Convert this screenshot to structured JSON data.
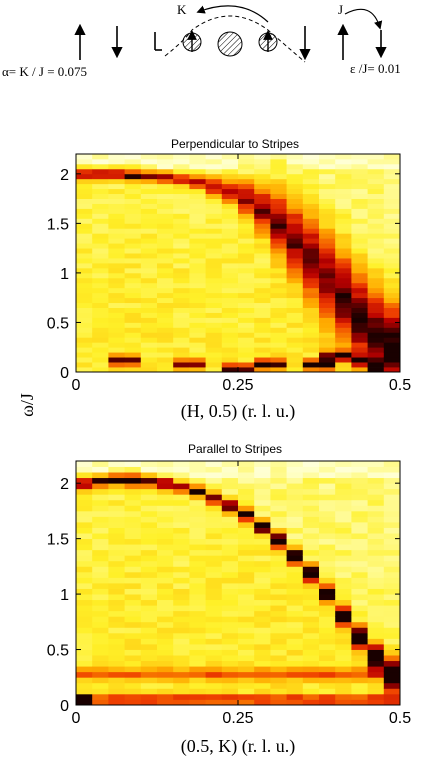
{
  "schematic": {
    "alpha_label": "α= K / J = 0.075",
    "epsilon_label": "ε /J= 0.01",
    "k_label": "K",
    "j_label": "J"
  },
  "chart_data": [
    {
      "type": "heatmap",
      "title": "Perpendicular to Stripes",
      "xlabel": "(H, 0.5) (r. l. u.)",
      "ylabel": "ω/J",
      "xlim": [
        0,
        0.5
      ],
      "ylim": [
        0,
        2.2
      ],
      "xticks": [
        "0",
        "0.25",
        "0.5"
      ],
      "yticks": [
        "0",
        "0.5",
        "1",
        "1.5",
        "2"
      ],
      "colormap": "hot (white-yellow-red-black)",
      "columns": 20,
      "band_omega": [
        2.0,
        2.0,
        2.0,
        1.99,
        1.98,
        1.97,
        1.95,
        1.92,
        1.88,
        1.83,
        1.76,
        1.66,
        1.52,
        1.36,
        1.18,
        0.98,
        0.78,
        0.58,
        0.42,
        0.3
      ],
      "band_width": [
        0.05,
        0.05,
        0.05,
        0.05,
        0.05,
        0.05,
        0.06,
        0.07,
        0.09,
        0.12,
        0.17,
        0.24,
        0.32,
        0.38,
        0.42,
        0.45,
        0.46,
        0.46,
        0.44,
        0.42
      ],
      "band_intensity": [
        0.65,
        0.7,
        0.72,
        0.72,
        0.7,
        0.66,
        0.62,
        0.6,
        0.6,
        0.6,
        0.62,
        0.64,
        0.66,
        0.66,
        0.66,
        0.66,
        0.68,
        0.7,
        0.72,
        0.74
      ],
      "low_energy_peaks": [
        [
          0.075,
          0.12,
          0.6
        ],
        [
          0.175,
          0.08,
          0.55
        ],
        [
          0.245,
          0.03,
          0.7
        ],
        [
          0.3,
          0.08,
          0.7
        ],
        [
          0.37,
          0.08,
          0.75
        ],
        [
          0.4,
          0.16,
          0.6
        ],
        [
          0.435,
          0.12,
          0.75
        ],
        [
          0.46,
          0.06,
          0.95
        ],
        [
          0.49,
          0.15,
          0.85
        ]
      ]
    },
    {
      "type": "heatmap",
      "title": "Parallel to Stripes",
      "xlabel": "(0.5, K) (r. l. u.)",
      "ylabel": "",
      "xlim": [
        0,
        0.5
      ],
      "ylim": [
        0,
        2.2
      ],
      "xticks": [
        "0",
        "0.25",
        "0.5"
      ],
      "yticks": [
        "0",
        "0.5",
        "1",
        "1.5",
        "2"
      ],
      "colormap": "hot (white-yellow-red-black)",
      "columns": 20,
      "band_omega": [
        2.0,
        2.02,
        2.03,
        2.03,
        2.02,
        2.0,
        1.97,
        1.93,
        1.87,
        1.8,
        1.72,
        1.61,
        1.49,
        1.35,
        1.19,
        1.01,
        0.81,
        0.62,
        0.44,
        0.28
      ],
      "band_width": [
        0.05,
        0.05,
        0.05,
        0.05,
        0.05,
        0.05,
        0.05,
        0.05,
        0.05,
        0.06,
        0.06,
        0.06,
        0.07,
        0.07,
        0.08,
        0.08,
        0.09,
        0.1,
        0.12,
        0.14
      ],
      "band_intensity": [
        0.7,
        0.75,
        0.78,
        0.78,
        0.75,
        0.72,
        0.72,
        0.74,
        0.76,
        0.78,
        0.8,
        0.82,
        0.85,
        0.85,
        0.85,
        0.85,
        0.85,
        0.88,
        0.9,
        0.95
      ],
      "flat_bands": [
        [
          0.28,
          0.05,
          0.35
        ],
        [
          0.05,
          0.04,
          0.5
        ]
      ],
      "low_energy_peaks": [
        [
          0.01,
          0.05,
          0.55
        ]
      ]
    }
  ]
}
